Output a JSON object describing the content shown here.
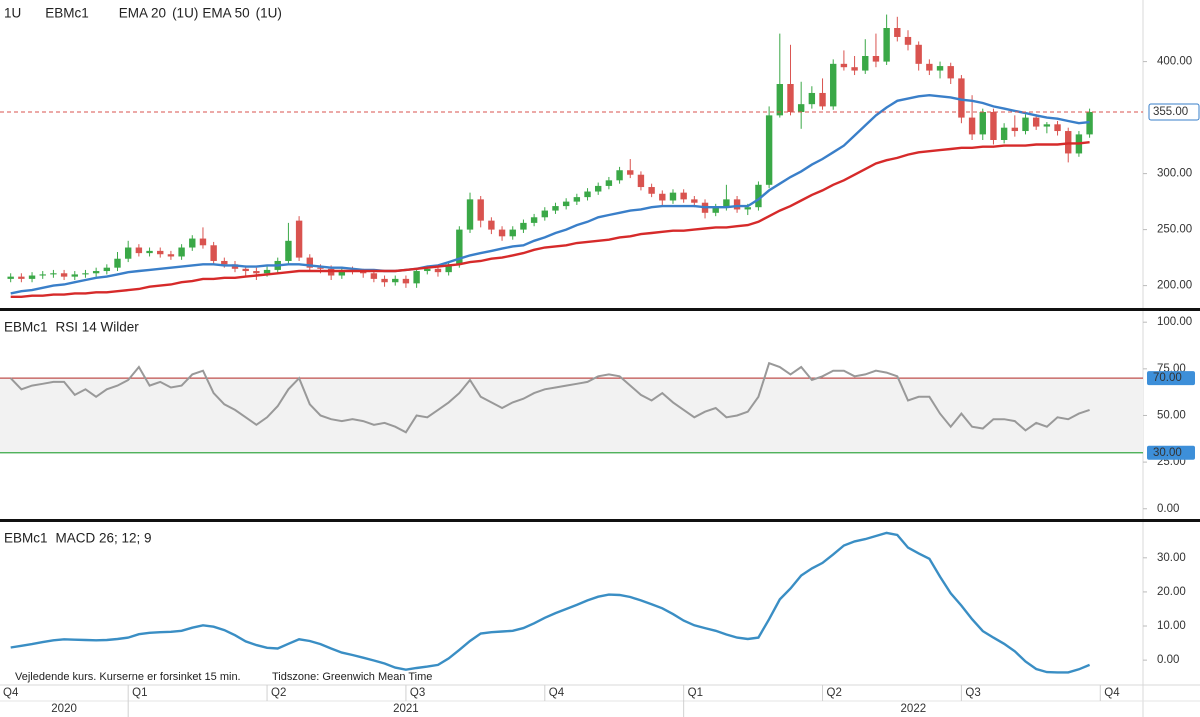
{
  "chart_data": [
    {
      "type": "candlestick",
      "interval": "1U",
      "symbol": "EBMc1",
      "up_color": "#3aa847",
      "down_color": "#d9534f",
      "open": [
        206,
        208,
        206,
        209,
        210,
        211,
        208,
        210,
        211,
        213,
        216,
        224,
        234,
        229,
        231,
        228,
        226,
        234,
        242,
        236,
        222,
        219,
        215,
        213,
        211,
        214,
        222,
        258,
        225,
        216,
        215,
        209,
        214,
        213,
        211,
        206,
        203,
        206,
        202,
        213,
        215,
        212,
        219,
        250,
        277,
        258,
        250,
        244,
        250,
        256,
        261,
        267,
        271,
        275,
        279,
        284,
        289,
        294,
        303,
        299,
        288,
        282,
        276,
        283,
        277,
        274,
        265,
        270,
        277,
        268,
        270,
        290,
        352,
        380,
        355,
        362,
        372,
        360,
        398,
        395,
        392,
        405,
        400,
        430,
        422,
        415,
        398,
        392,
        396,
        385,
        350,
        335,
        355,
        330,
        341,
        338,
        350,
        342,
        344,
        338,
        318,
        335
      ],
      "high": [
        211,
        211,
        212,
        213,
        214,
        214,
        213,
        214,
        216,
        219,
        230,
        240,
        237,
        234,
        234,
        231,
        237,
        245,
        252,
        239,
        225,
        222,
        218,
        216,
        217,
        225,
        256,
        262,
        228,
        219,
        218,
        217,
        217,
        215,
        214,
        209,
        209,
        209,
        216,
        218,
        218,
        222,
        253,
        283,
        280,
        261,
        253,
        253,
        259,
        264,
        270,
        274,
        278,
        282,
        287,
        292,
        297,
        306,
        313,
        302,
        291,
        285,
        286,
        286,
        280,
        277,
        273,
        290,
        280,
        273,
        293,
        360,
        425,
        415,
        382,
        378,
        385,
        402,
        410,
        405,
        420,
        425,
        442,
        440,
        428,
        418,
        402,
        400,
        399,
        388,
        370,
        358,
        358,
        345,
        352,
        353,
        353,
        346,
        347,
        341,
        338,
        358
      ],
      "low": [
        203,
        203,
        203,
        206,
        207,
        205,
        205,
        207,
        208,
        210,
        213,
        221,
        226,
        226,
        225,
        223,
        223,
        231,
        233,
        219,
        216,
        212,
        208,
        205,
        208,
        211,
        219,
        222,
        213,
        211,
        205,
        206,
        210,
        207,
        203,
        199,
        200,
        198,
        198,
        210,
        208,
        209,
        216,
        247,
        252,
        246,
        240,
        241,
        247,
        253,
        258,
        264,
        268,
        272,
        276,
        281,
        286,
        291,
        296,
        285,
        279,
        272,
        273,
        274,
        270,
        260,
        262,
        267,
        265,
        263,
        267,
        287,
        350,
        352,
        340,
        358,
        357,
        357,
        392,
        388,
        389,
        395,
        397,
        418,
        410,
        392,
        388,
        385,
        380,
        345,
        330,
        330,
        326,
        327,
        333,
        335,
        339,
        336,
        334,
        310,
        315,
        332
      ],
      "close": [
        208,
        206,
        209,
        210,
        211,
        208,
        210,
        211,
        213,
        216,
        224,
        234,
        229,
        231,
        228,
        226,
        234,
        242,
        236,
        222,
        219,
        215,
        213,
        211,
        214,
        222,
        240,
        225,
        216,
        215,
        209,
        214,
        213,
        211,
        206,
        203,
        206,
        202,
        213,
        215,
        212,
        219,
        250,
        277,
        258,
        250,
        244,
        250,
        256,
        261,
        267,
        271,
        275,
        279,
        284,
        289,
        294,
        303,
        299,
        288,
        282,
        276,
        283,
        277,
        274,
        265,
        270,
        277,
        268,
        270,
        290,
        352,
        380,
        355,
        362,
        372,
        360,
        398,
        395,
        392,
        405,
        400,
        430,
        422,
        415,
        398,
        392,
        396,
        385,
        350,
        335,
        355,
        330,
        341,
        338,
        350,
        342,
        344,
        338,
        318,
        335,
        355
      ],
      "series": [
        {
          "name": "EMA 20",
          "suffix": "(1U)",
          "color": "#3a7fc9",
          "values": [
            193,
            195,
            196,
            198,
            200,
            201,
            203,
            205,
            207,
            208,
            210,
            212,
            213,
            214,
            215,
            216,
            217,
            218,
            219,
            219,
            218,
            218,
            217,
            217,
            218,
            218,
            219,
            219,
            218,
            217,
            216,
            216,
            215,
            214,
            214,
            213,
            213,
            214,
            215,
            217,
            218,
            221,
            224,
            227,
            229,
            231,
            233,
            235,
            236,
            240,
            243,
            247,
            250,
            254,
            257,
            261,
            263,
            265,
            267,
            268,
            270,
            271,
            271,
            271,
            271,
            270,
            270,
            270,
            271,
            271,
            277,
            285,
            291,
            297,
            302,
            308,
            313,
            319,
            325,
            334,
            343,
            352,
            359,
            365,
            367,
            369,
            370,
            369,
            368,
            366,
            365,
            363,
            360,
            358,
            356,
            354,
            352,
            350,
            349,
            347,
            345,
            346
          ]
        },
        {
          "name": "EMA 50",
          "suffix": "(1U)",
          "color": "#d62a2a",
          "values": [
            190,
            190,
            191,
            191,
            192,
            192,
            193,
            193,
            194,
            194,
            195,
            196,
            197,
            199,
            200,
            201,
            203,
            204,
            206,
            206,
            207,
            207,
            208,
            209,
            210,
            211,
            212,
            213,
            213,
            213,
            213,
            213,
            213,
            213,
            213,
            213,
            213,
            214,
            215,
            216,
            217,
            218,
            219,
            221,
            222,
            224,
            225,
            227,
            229,
            232,
            234,
            235,
            236,
            238,
            239,
            240,
            241,
            243,
            244,
            246,
            247,
            248,
            249,
            249,
            250,
            251,
            252,
            252,
            253,
            254,
            257,
            262,
            267,
            271,
            276,
            281,
            285,
            290,
            294,
            299,
            304,
            309,
            312,
            314,
            317,
            319,
            320,
            321,
            322,
            323,
            323,
            324,
            324,
            325,
            325,
            325,
            326,
            326,
            326,
            327,
            327,
            328
          ]
        }
      ],
      "last_price": {
        "value": 355,
        "label": "355.00",
        "color": "#d9534f"
      },
      "ylim": [
        180,
        455
      ],
      "yticks": [
        {
          "value": 200,
          "label": "200.00"
        },
        {
          "value": 250,
          "label": "250.00"
        },
        {
          "value": 300,
          "label": "300.00"
        },
        {
          "value": 400,
          "label": "400.00"
        }
      ]
    },
    {
      "type": "line",
      "symbol": "EBMc1",
      "title": "RSI 14 Wilder",
      "series": [
        {
          "color": "#999999",
          "values": [
            70,
            64,
            66,
            67,
            68,
            68,
            61,
            64,
            60,
            64,
            66,
            69,
            76,
            66,
            68,
            65,
            66,
            72,
            74,
            62,
            56,
            53,
            49,
            45,
            49,
            55,
            64,
            70,
            56,
            50,
            48,
            47,
            48,
            47,
            45,
            46,
            44,
            41,
            50,
            49,
            53,
            57,
            62,
            69,
            60,
            57,
            54,
            57,
            59,
            62,
            64,
            65,
            66,
            67,
            68,
            71,
            72,
            71,
            66,
            61,
            58,
            62,
            57,
            53,
            49,
            52,
            54,
            49,
            50,
            52,
            60,
            78,
            76,
            72,
            76,
            69,
            71,
            74,
            74,
            71,
            72,
            74,
            73,
            71,
            58,
            60,
            60,
            51,
            44,
            51,
            44,
            43,
            48,
            48,
            47,
            42,
            46,
            44,
            49,
            48,
            51,
            53
          ]
        }
      ],
      "levels": [
        {
          "value": 70,
          "label": "70.00",
          "color": "#c0504d"
        },
        {
          "value": 30,
          "label": "30.00",
          "color": "#3aa847"
        }
      ],
      "ylim": [
        -5.5,
        106
      ],
      "yticks": [
        {
          "value": 0,
          "label": "0.00"
        },
        {
          "value": 25,
          "label": "25.00"
        },
        {
          "value": 50,
          "label": "50.00"
        },
        {
          "value": 75,
          "label": "75.00"
        },
        {
          "value": 100,
          "label": "100.00"
        }
      ]
    },
    {
      "type": "line",
      "symbol": "EBMc1",
      "title": "MACD 26; 12; 9",
      "series": [
        {
          "color": "#3a8ec4",
          "values": [
            3.7,
            4.2,
            4.7,
            5.3,
            5.8,
            6.1,
            6.0,
            5.9,
            5.8,
            5.9,
            6.2,
            6.6,
            7.6,
            8.0,
            8.2,
            8.3,
            8.6,
            9.5,
            10.2,
            9.8,
            8.8,
            7.3,
            5.5,
            4.4,
            3.6,
            3.4,
            4.8,
            6.1,
            5.6,
            4.7,
            3.4,
            2.2,
            1.5,
            0.7,
            -0.1,
            -1.0,
            -2.2,
            -2.8,
            -2.3,
            -1.9,
            -1.4,
            0.5,
            3.0,
            5.6,
            7.8,
            8.2,
            8.4,
            8.6,
            9.4,
            10.8,
            12.4,
            13.8,
            15.0,
            16.2,
            17.5,
            18.6,
            19.2,
            19.1,
            18.5,
            17.5,
            16.4,
            15.2,
            13.5,
            11.6,
            10.2,
            9.4,
            8.6,
            7.5,
            6.6,
            6.2,
            6.6,
            12.0,
            17.8,
            21.0,
            24.8,
            26.9,
            28.5,
            31.0,
            33.6,
            34.8,
            35.5,
            36.4,
            37.3,
            36.7,
            33.0,
            31.3,
            29.7,
            24.5,
            19.6,
            16.0,
            12.0,
            8.5,
            6.6,
            4.8,
            2.6,
            -0.4,
            -2.6,
            -3.5,
            -3.6,
            -3.6,
            -2.7,
            -1.4
          ]
        }
      ],
      "ylim": [
        -7,
        40.5
      ],
      "yticks": [
        {
          "value": 0,
          "label": "0.00"
        },
        {
          "value": 10,
          "label": "10.00"
        },
        {
          "value": 20,
          "label": "20.00"
        },
        {
          "value": 30,
          "label": "30.00"
        }
      ]
    }
  ],
  "x_axis": {
    "xlim": [
      -1,
      106
    ],
    "quarters": [
      {
        "value": -2,
        "label": "Q4"
      },
      {
        "value": 11,
        "label": "Q1"
      },
      {
        "value": 24,
        "label": "Q2"
      },
      {
        "value": 37,
        "label": "Q3"
      },
      {
        "value": 50,
        "label": "Q4"
      },
      {
        "value": 63,
        "label": "Q1"
      },
      {
        "value": 76,
        "label": "Q2"
      },
      {
        "value": 89,
        "label": "Q3"
      },
      {
        "value": 102,
        "label": "Q4"
      }
    ],
    "years": [
      {
        "value": -2,
        "label": "2020"
      },
      {
        "value": 11,
        "label": "2021"
      },
      {
        "value": 63,
        "label": "2022"
      }
    ]
  },
  "notes": [
    "Vejledende kurs. Kurserne er forsinket 15 min.",
    "Tidszone: Greenwich Mean Time"
  ]
}
